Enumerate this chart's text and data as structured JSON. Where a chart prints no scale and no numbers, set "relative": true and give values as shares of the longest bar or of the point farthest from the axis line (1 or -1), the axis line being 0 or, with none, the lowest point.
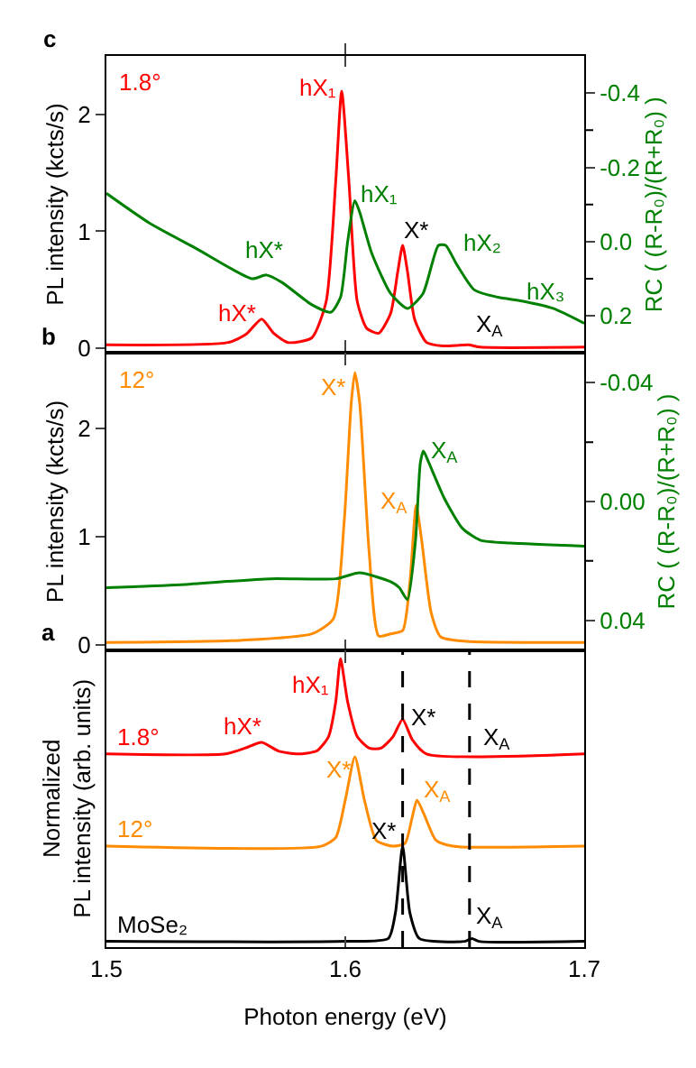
{
  "chart_data": [
    {
      "type": "line",
      "title": "c",
      "ylabel": "PL intensity (kcts/s)",
      "y2label": "RC ( (R-R₀)/(R+R₀) )",
      "tick_labels": "y",
      "xlim": [
        1.5,
        1.7
      ],
      "xticks": [
        1.5,
        1.6,
        1.7
      ],
      "ylim": [
        -0.04,
        2.5
      ],
      "yticks": [
        0,
        1,
        2
      ],
      "y2lim": [
        0.3,
        -0.5
      ],
      "y2ticks": [
        {
          "value": -0.4,
          "label": "-0.4"
        },
        {
          "value": -0.3,
          "label": null
        },
        {
          "value": -0.2,
          "label": "-0.2"
        },
        {
          "value": -0.1,
          "label": null
        },
        {
          "value": 0,
          "label": "0.0"
        },
        {
          "value": 0.1,
          "label": null
        },
        {
          "value": 0.2,
          "label": "0.2"
        }
      ],
      "series": [
        {
          "name": "1.8°",
          "color": "#ff0000",
          "x": [
            1.5,
            1.551,
            1.5585,
            1.565,
            1.57,
            1.576,
            1.586,
            1.592,
            1.596,
            1.5985,
            1.6015,
            1.605,
            1.609,
            1.614,
            1.619,
            1.622,
            1.624,
            1.626,
            1.629,
            1.634,
            1.641,
            1.6515,
            1.6565,
            1.7
          ],
          "values": [
            0.03,
            0.05,
            0.12,
            0.25,
            0.13,
            0.05,
            0.09,
            0.4,
            1.43,
            2.2,
            1.43,
            0.4,
            0.17,
            0.13,
            0.3,
            0.66,
            0.88,
            0.66,
            0.25,
            0.05,
            0.02,
            0.03,
            0.01,
            0.01
          ]
        },
        {
          "color": "#008000",
          "axis": "y2",
          "x": [
            1.5,
            1.518,
            1.538,
            1.561,
            1.567,
            1.5735,
            1.586,
            1.594,
            1.598,
            1.601,
            1.604,
            1.606,
            1.611,
            1.619,
            1.626,
            1.6325,
            1.639,
            1.642,
            1.6465,
            1.654,
            1.664,
            1.674,
            1.687,
            1.7
          ],
          "values": [
            -0.13,
            -0.05,
            0.02,
            0.1,
            0.09,
            0.11,
            0.17,
            0.19,
            0.15,
            0.0,
            -0.11,
            -0.08,
            0.03,
            0.14,
            0.18,
            0.14,
            0.01,
            0.01,
            0.06,
            0.13,
            0.15,
            0.16,
            0.18,
            0.22
          ]
        }
      ],
      "annotations": [
        "hX*",
        "hX₁",
        "X*",
        "X$_{A}$",
        "hX*",
        "hX₁",
        "hX₂",
        "hX₃"
      ]
    },
    {
      "type": "line",
      "title": "b",
      "ylabel": "PL intensity (kcts/s)",
      "y2label": "RC ( (R-R₀)/(R+R₀) )",
      "tick_labels": "y",
      "xlim": [
        1.5,
        1.7
      ],
      "xticks": [
        1.5,
        1.6,
        1.7
      ],
      "ylim": [
        -0.05,
        2.7
      ],
      "yticks": [
        0,
        1,
        2
      ],
      "y2lim": [
        0.05,
        -0.05
      ],
      "y2ticks": [
        -0.04,
        {
          "value": -0.02,
          "label": null
        },
        {
          "value": 0,
          "label": "0.00"
        },
        {
          "value": 0.02,
          "label": null
        },
        0.04
      ],
      "series": [
        {
          "name": "12°",
          "color": "#ff8c00",
          "x": [
            1.5,
            1.556,
            1.586,
            1.595,
            1.5995,
            1.6025,
            1.604,
            1.606,
            1.61,
            1.614,
            1.619,
            1.624,
            1.627,
            1.6297,
            1.632,
            1.636,
            1.64,
            1.651,
            1.7
          ],
          "values": [
            0.02,
            0.04,
            0.1,
            0.24,
            1.13,
            2.24,
            2.52,
            2.24,
            0.85,
            0.08,
            0.1,
            0.13,
            0.57,
            1.29,
            0.96,
            0.29,
            0.07,
            0.03,
            0.02
          ]
        },
        {
          "color": "#008000",
          "axis": "y2",
          "x": [
            1.5,
            1.531,
            1.5686,
            1.596,
            1.606,
            1.619,
            1.6226,
            1.626,
            1.6294,
            1.6314,
            1.6327,
            1.635,
            1.6415,
            1.649,
            1.6565,
            1.669,
            1.7
          ],
          "values": [
            0.029,
            0.028,
            0.026,
            0.026,
            0.024,
            0.027,
            0.029,
            0.033,
            0.013,
            -0.013,
            -0.017,
            -0.013,
            -0.001,
            0.009,
            0.013,
            0.014,
            0.015
          ]
        }
      ],
      "annotations": [
        "X*",
        "X$_{A}$",
        "X$_{A}$"
      ]
    },
    {
      "type": "line",
      "title": "a",
      "relative": true,
      "ylabel": "Normalized\nPL intensity (arb. units)",
      "xlabel": "Photon energy (eV)",
      "tick_labels": "x",
      "xlim": [
        1.5,
        1.7
      ],
      "xticks": [
        1.5,
        1.6,
        1.7
      ],
      "ref_lines": [
        {
          "axis": "x",
          "value": 1.624,
          "color": "#000000",
          "line_style": "dashed"
        },
        {
          "axis": "x",
          "value": 1.652,
          "color": "#000000",
          "line_style": "dashed"
        }
      ],
      "series": [
        {
          "name": "1.8°",
          "color": "#ff0000",
          "x": [
            1.5,
            1.55,
            1.558,
            1.565,
            1.572,
            1.58,
            1.588,
            1.593,
            1.596,
            1.598,
            1.601,
            1.605,
            1.61,
            1.615,
            1.62,
            1.624,
            1.628,
            1.634,
            1.7
          ],
          "values": [
            0.67,
            0.67,
            0.69,
            0.71,
            0.68,
            0.67,
            0.68,
            0.73,
            0.85,
            1.0,
            0.85,
            0.73,
            0.69,
            0.69,
            0.73,
            0.79,
            0.72,
            0.67,
            0.67
          ]
        },
        {
          "name": "12°",
          "color": "#ff8c00",
          "x": [
            1.5,
            1.59,
            1.596,
            1.6,
            1.604,
            1.608,
            1.613,
            1.62,
            1.625,
            1.628,
            1.63,
            1.633,
            1.638,
            1.645,
            1.7
          ],
          "values": [
            0.35,
            0.35,
            0.38,
            0.51,
            0.66,
            0.51,
            0.37,
            0.35,
            0.36,
            0.45,
            0.51,
            0.46,
            0.37,
            0.35,
            0.35
          ]
        },
        {
          "name": "MoSe₂",
          "color": "#000000",
          "x": [
            1.5,
            1.6,
            1.618,
            1.621,
            1.624,
            1.627,
            1.631,
            1.65,
            1.653,
            1.656,
            1.7
          ],
          "values": [
            0.02,
            0.02,
            0.03,
            0.12,
            0.35,
            0.12,
            0.03,
            0.02,
            0.03,
            0.02,
            0.02
          ]
        }
      ],
      "annotations": [
        "hX₁",
        "hX*",
        "X*",
        "X$_{A}$",
        "X*",
        "X$_{A}$",
        "X*",
        "X$_{A}$"
      ]
    }
  ]
}
